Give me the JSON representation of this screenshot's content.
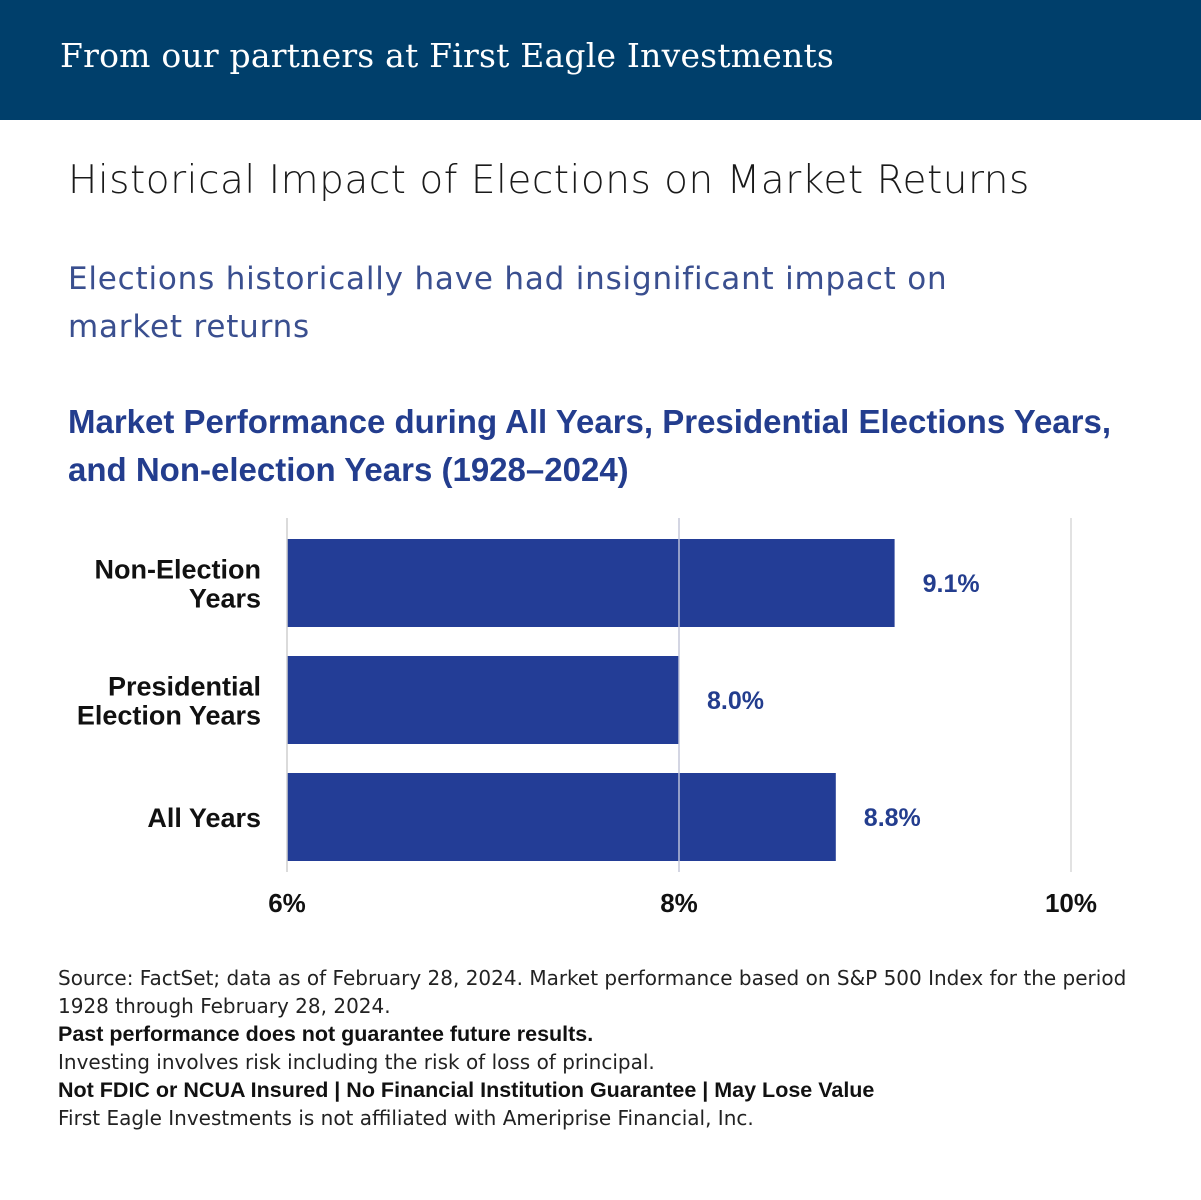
{
  "banner": {
    "text": "From our partners at First Eagle Investments"
  },
  "header": {
    "title": "Historical Impact of Elections on Market Returns",
    "subtitle": "Elections historically have had insignificant impact on market returns"
  },
  "chart_data": {
    "type": "bar",
    "orientation": "horizontal",
    "title": "Market Performance during All Years, Presidential Elections Years, and Non-election Years (1928–2024)",
    "categories": [
      [
        "Non-Election",
        "Years"
      ],
      [
        "Presidential",
        "Election Years"
      ],
      [
        "All Years"
      ]
    ],
    "values": [
      9.1,
      8.0,
      8.8
    ],
    "value_labels": [
      "9.1%",
      "8.0%",
      "8.8%"
    ],
    "xlim": [
      6,
      10
    ],
    "ticks": [
      6,
      8,
      10
    ],
    "tick_labels": [
      "6%",
      "8%",
      "10%"
    ],
    "grid": true,
    "bar_color": "#233d96",
    "label_color": "#233d8e"
  },
  "footer": {
    "source": "Source: FactSet; data as of February 28, 2024. Market performance based on S&P 500 Index for the period 1928 through February 28, 2024.",
    "past_performance": "Past performance does not guarantee future results.",
    "risk": "Investing involves risk including the risk of loss of principal.",
    "insured": "Not FDIC or NCUA Insured | No Financial Institution Guarantee | May Lose Value",
    "affiliation": "First Eagle Investments is not affiliated with Ameriprise Financial, Inc."
  }
}
